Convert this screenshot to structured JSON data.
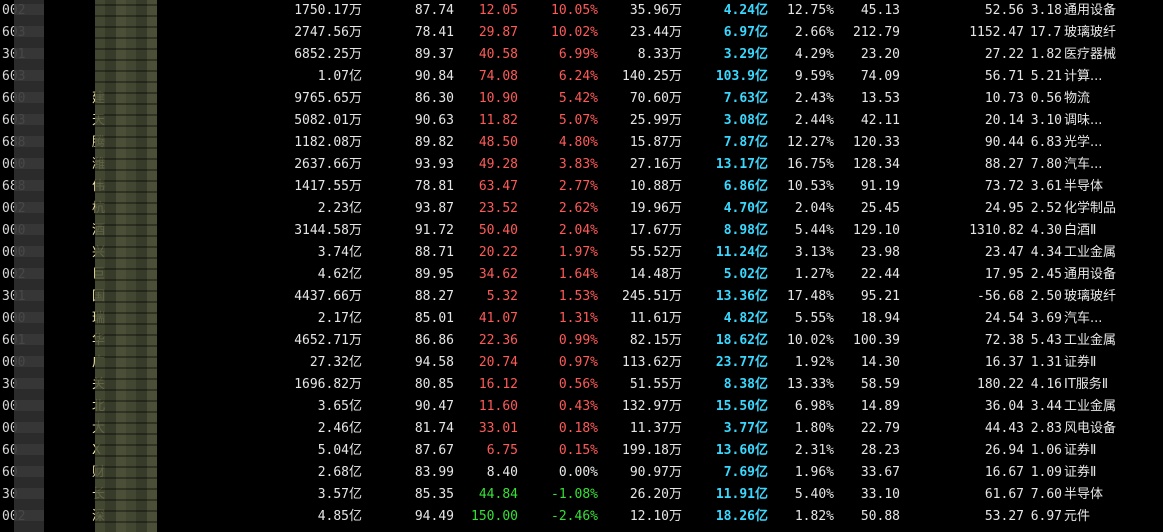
{
  "rows": [
    {
      "code": "002",
      "name": "",
      "amount": "1750.17万",
      "pct_a": "87.74",
      "price": "12.05",
      "chg": "10.05%",
      "vol": "35.96万",
      "cap": "4.24亿",
      "turn": "12.75%",
      "pe1": "45.13",
      "pe2": "52.56",
      "x": "3.18",
      "industry": "通用设备",
      "dir": "up"
    },
    {
      "code": "603",
      "name": "",
      "amount": "2747.56万",
      "pct_a": "78.41",
      "price": "29.87",
      "chg": "10.02%",
      "vol": "23.44万",
      "cap": "6.97亿",
      "turn": "2.66%",
      "pe1": "212.79",
      "pe2": "1152.47",
      "x": "17.73",
      "industry": "玻璃玻纤",
      "dir": "up"
    },
    {
      "code": "301",
      "name": "",
      "amount": "6852.25万",
      "pct_a": "89.37",
      "price": "40.58",
      "chg": "6.99%",
      "vol": "8.33万",
      "cap": "3.29亿",
      "turn": "4.29%",
      "pe1": "23.20",
      "pe2": "27.22",
      "x": "1.82",
      "industry": "医疗器械",
      "dir": "up"
    },
    {
      "code": "603",
      "name": "",
      "amount": "1.07亿",
      "pct_a": "90.84",
      "price": "74.08",
      "chg": "6.24%",
      "vol": "140.25万",
      "cap": "103.9亿",
      "turn": "9.59%",
      "pe1": "74.09",
      "pe2": "56.71",
      "x": "5.21",
      "industry": "计算...",
      "dir": "up"
    },
    {
      "code": "600",
      "name": "建",
      "amount": "9765.65万",
      "pct_a": "86.30",
      "price": "10.90",
      "chg": "5.42%",
      "vol": "70.60万",
      "cap": "7.63亿",
      "turn": "2.43%",
      "pe1": "13.53",
      "pe2": "10.73",
      "x": "0.56",
      "industry": "物流",
      "dir": "up"
    },
    {
      "code": "603",
      "name": "天",
      "amount": "5082.01万",
      "pct_a": "90.63",
      "price": "11.82",
      "chg": "5.07%",
      "vol": "25.99万",
      "cap": "3.08亿",
      "turn": "2.44%",
      "pe1": "42.11",
      "pe2": "20.14",
      "x": "3.10",
      "industry": "调味...",
      "dir": "up"
    },
    {
      "code": "688",
      "name": "腾",
      "amount": "1182.08万",
      "pct_a": "89.82",
      "price": "48.50",
      "chg": "4.80%",
      "vol": "15.87万",
      "cap": "7.87亿",
      "turn": "12.27%",
      "pe1": "120.33",
      "pe2": "90.44",
      "x": "6.83",
      "industry": "光学...",
      "dir": "up"
    },
    {
      "code": "000",
      "name": "潍",
      "amount": "2637.66万",
      "pct_a": "93.93",
      "price": "49.28",
      "chg": "3.83%",
      "vol": "27.16万",
      "cap": "13.17亿",
      "turn": "16.75%",
      "pe1": "128.34",
      "pe2": "88.27",
      "x": "7.80",
      "industry": "汽车...",
      "dir": "up"
    },
    {
      "code": "688",
      "name": "伟",
      "amount": "1417.55万",
      "pct_a": "78.81",
      "price": "63.47",
      "chg": "2.77%",
      "vol": "10.88万",
      "cap": "6.86亿",
      "turn": "10.53%",
      "pe1": "91.19",
      "pe2": "73.72",
      "x": "3.61",
      "industry": "半导体",
      "dir": "up"
    },
    {
      "code": "002",
      "name": "杭",
      "amount": "2.23亿",
      "pct_a": "93.87",
      "price": "23.52",
      "chg": "2.62%",
      "vol": "19.96万",
      "cap": "4.70亿",
      "turn": "2.04%",
      "pe1": "25.45",
      "pe2": "24.95",
      "x": "2.52",
      "industry": "化学制品",
      "dir": "up"
    },
    {
      "code": "000",
      "name": "酒",
      "amount": "3144.58万",
      "pct_a": "91.72",
      "price": "50.40",
      "chg": "2.04%",
      "vol": "17.67万",
      "cap": "8.98亿",
      "turn": "5.44%",
      "pe1": "129.10",
      "pe2": "1310.82",
      "x": "4.30",
      "industry": "白酒Ⅱ",
      "dir": "up"
    },
    {
      "code": "000",
      "name": "兴",
      "amount": "3.74亿",
      "pct_a": "88.71",
      "price": "20.22",
      "chg": "1.97%",
      "vol": "55.52万",
      "cap": "11.24亿",
      "turn": "3.13%",
      "pe1": "23.98",
      "pe2": "23.47",
      "x": "4.34",
      "industry": "工业金属",
      "dir": "up"
    },
    {
      "code": "002",
      "name": "巨",
      "amount": "4.62亿",
      "pct_a": "89.95",
      "price": "34.62",
      "chg": "1.64%",
      "vol": "14.48万",
      "cap": "5.02亿",
      "turn": "1.27%",
      "pe1": "22.44",
      "pe2": "17.95",
      "x": "2.45",
      "industry": "通用设备",
      "dir": "up"
    },
    {
      "code": "301",
      "name": "国",
      "amount": "4437.66万",
      "pct_a": "88.27",
      "price": "5.32",
      "chg": "1.53%",
      "vol": "245.51万",
      "cap": "13.36亿",
      "turn": "17.48%",
      "pe1": "95.21",
      "pe2": "-56.68",
      "x": "2.50",
      "industry": "玻璃玻纤",
      "dir": "up"
    },
    {
      "code": "000",
      "name": "瑞",
      "amount": "2.17亿",
      "pct_a": "85.01",
      "price": "41.07",
      "chg": "1.31%",
      "vol": "11.61万",
      "cap": "4.82亿",
      "turn": "5.55%",
      "pe1": "18.94",
      "pe2": "24.54",
      "x": "3.69",
      "industry": "汽车...",
      "dir": "up"
    },
    {
      "code": "601",
      "name": "华",
      "amount": "4652.71万",
      "pct_a": "86.86",
      "price": "22.36",
      "chg": "0.99%",
      "vol": "82.15万",
      "cap": "18.62亿",
      "turn": "10.02%",
      "pe1": "100.39",
      "pe2": "72.38",
      "x": "5.43",
      "industry": "工业金属",
      "dir": "up"
    },
    {
      "code": "000",
      "name": "广",
      "amount": "27.32亿",
      "pct_a": "94.58",
      "price": "20.74",
      "chg": "0.97%",
      "vol": "113.62万",
      "cap": "23.77亿",
      "turn": "1.92%",
      "pe1": "14.30",
      "pe2": "16.37",
      "x": "1.31",
      "industry": "证券Ⅱ",
      "dir": "up"
    },
    {
      "code": "30",
      "name": "关",
      "amount": "1696.82万",
      "pct_a": "80.85",
      "price": "16.12",
      "chg": "0.56%",
      "vol": "51.55万",
      "cap": "8.38亿",
      "turn": "13.33%",
      "pe1": "58.59",
      "pe2": "180.22",
      "x": "4.16",
      "industry": "IT服务Ⅱ",
      "dir": "up"
    },
    {
      "code": "00",
      "name": "北",
      "amount": "3.65亿",
      "pct_a": "90.47",
      "price": "11.60",
      "chg": "0.43%",
      "vol": "132.97万",
      "cap": "15.50亿",
      "turn": "6.98%",
      "pe1": "14.89",
      "pe2": "36.04",
      "x": "3.44",
      "industry": "工业金属",
      "dir": "up"
    },
    {
      "code": "00",
      "name": "大",
      "amount": "2.46亿",
      "pct_a": "81.74",
      "price": "33.01",
      "chg": "0.18%",
      "vol": "11.37万",
      "cap": "3.77亿",
      "turn": "1.80%",
      "pe1": "22.79",
      "pe2": "44.43",
      "x": "2.83",
      "industry": "风电设备",
      "dir": "up"
    },
    {
      "code": "60",
      "name": "X",
      "amount": "5.04亿",
      "pct_a": "87.67",
      "price": "6.75",
      "chg": "0.15%",
      "vol": "199.18万",
      "cap": "13.60亿",
      "turn": "2.31%",
      "pe1": "28.23",
      "pe2": "26.94",
      "x": "1.06",
      "industry": "证券Ⅱ",
      "dir": "up"
    },
    {
      "code": "60",
      "name": "财",
      "amount": "2.68亿",
      "pct_a": "83.99",
      "price": "8.40",
      "chg": "0.00%",
      "vol": "90.97万",
      "cap": "7.69亿",
      "turn": "1.96%",
      "pe1": "33.67",
      "pe2": "16.67",
      "x": "1.09",
      "industry": "证券Ⅱ",
      "dir": "flat"
    },
    {
      "code": "30",
      "name": "长",
      "amount": "3.57亿",
      "pct_a": "85.35",
      "price": "44.84",
      "chg": "-1.08%",
      "vol": "26.20万",
      "cap": "11.91亿",
      "turn": "5.40%",
      "pe1": "33.10",
      "pe2": "61.67",
      "x": "7.60",
      "industry": "半导体",
      "dir": "dn"
    },
    {
      "code": "002",
      "name": "深",
      "amount": "4.85亿",
      "pct_a": "94.49",
      "price": "150.00",
      "chg": "-2.46%",
      "vol": "12.10万",
      "cap": "18.26亿",
      "turn": "1.82%",
      "pe1": "50.88",
      "pe2": "53.27",
      "x": "6.97",
      "industry": "元件",
      "dir": "dn"
    }
  ]
}
